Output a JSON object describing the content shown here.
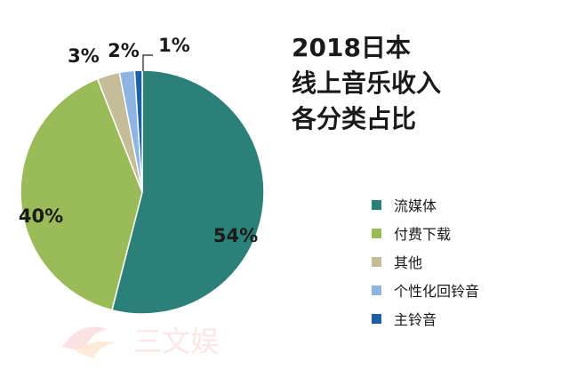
{
  "title_lines": [
    "2018日本",
    "线上音乐收入",
    "各分类占比"
  ],
  "watermark": {
    "text": "三文娱"
  },
  "chart_data": {
    "type": "pie",
    "title": "2018日本线上音乐收入各分类占比",
    "start_angle_deg": 0,
    "direction": "clockwise",
    "series": [
      {
        "name": "流媒体",
        "value": 54,
        "label": "54%",
        "color": "#2b8078"
      },
      {
        "name": "付费下载",
        "value": 40,
        "label": "40%",
        "color": "#9bbb59"
      },
      {
        "name": "其他",
        "value": 3,
        "label": "3%",
        "color": "#c4bd97"
      },
      {
        "name": "个性化回铃音",
        "value": 2,
        "label": "2%",
        "color": "#8eb4e3"
      },
      {
        "name": "主铃音",
        "value": 1,
        "label": "1%",
        "color": "#1f5fa8"
      }
    ],
    "legend_position": "right"
  }
}
